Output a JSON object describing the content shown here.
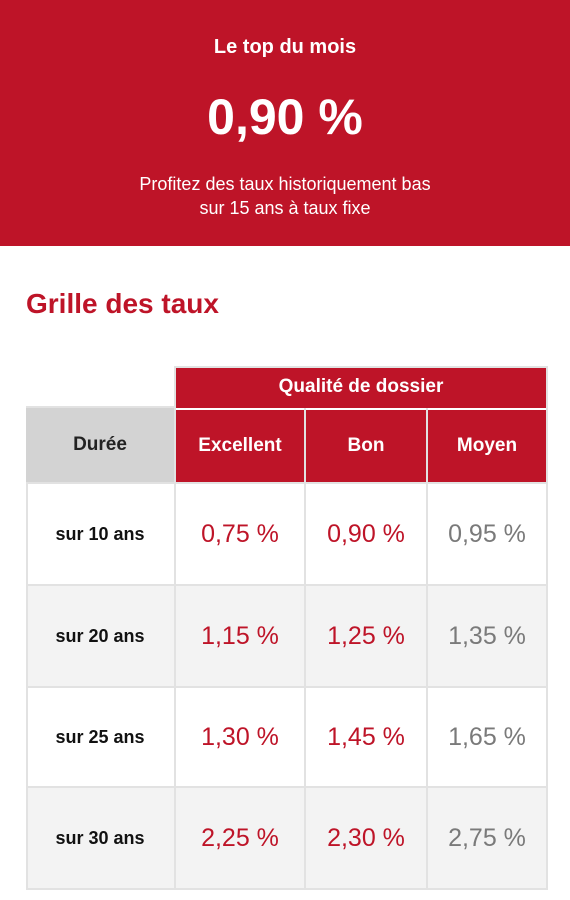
{
  "banner": {
    "title": "Le top du mois",
    "rate": "0,90 %",
    "subtitle_line1": "Profitez des taux historiquement bas",
    "subtitle_line2": "sur 15 ans à taux fixe"
  },
  "section_title": "Grille des taux",
  "table": {
    "group_header": "Qualité de dossier",
    "duration_header": "Durée",
    "columns": [
      "Excellent",
      "Bon",
      "Moyen"
    ],
    "rows": [
      {
        "duration": "sur 10 ans",
        "rates": [
          "0,75 %",
          "0,90 %",
          "0,95 %"
        ]
      },
      {
        "duration": "sur 20 ans",
        "rates": [
          "1,15 %",
          "1,25 %",
          "1,35 %"
        ]
      },
      {
        "duration": "sur 25 ans",
        "rates": [
          "1,30 %",
          "1,45 %",
          "1,65 %"
        ]
      },
      {
        "duration": "sur 30 ans",
        "rates": [
          "2,25 %",
          "2,30 %",
          "2,75 %"
        ]
      }
    ]
  },
  "colors": {
    "brand_red": "#be1428",
    "moyen_grey": "#7a7a7a",
    "header_grey": "#d3d3d3"
  }
}
